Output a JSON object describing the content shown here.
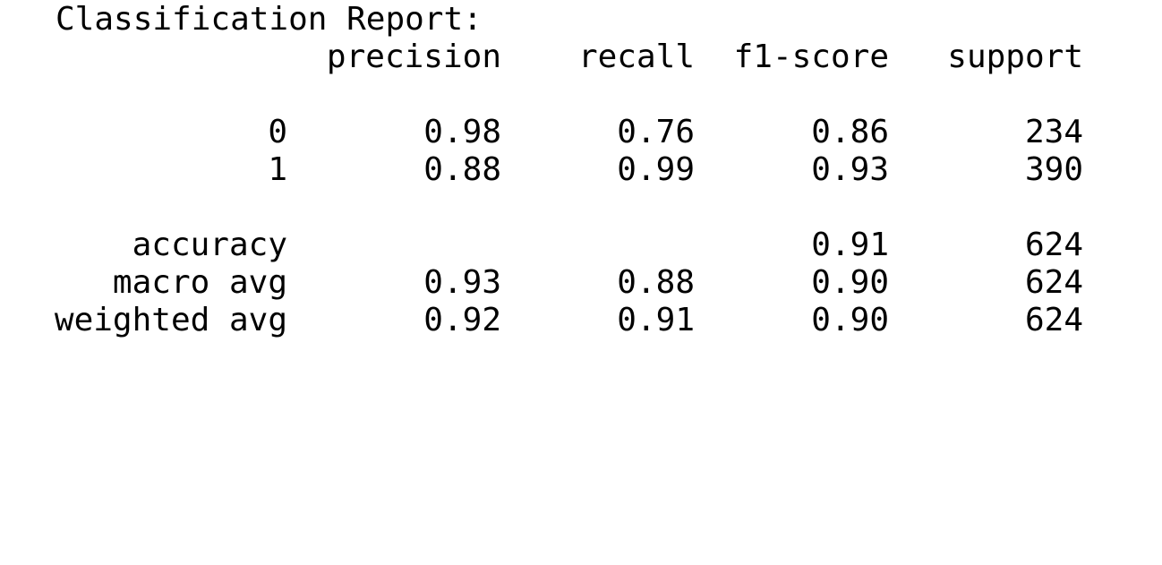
{
  "title": "Classification Report:",
  "columns": [
    "precision",
    "recall",
    "f1-score",
    "support"
  ],
  "rows": [
    {
      "label": "0",
      "precision": "0.98",
      "recall": "0.76",
      "f1": "0.86",
      "support": "234"
    },
    {
      "label": "1",
      "precision": "0.88",
      "recall": "0.99",
      "f1": "0.93",
      "support": "390"
    }
  ],
  "summary": [
    {
      "label": "accuracy",
      "precision": "",
      "recall": "",
      "f1": "0.91",
      "support": "624"
    },
    {
      "label": "macro avg",
      "precision": "0.93",
      "recall": "0.88",
      "f1": "0.90",
      "support": "624"
    },
    {
      "label": "weighted avg",
      "precision": "0.92",
      "recall": "0.91",
      "f1": "0.90",
      "support": "624"
    }
  ]
}
